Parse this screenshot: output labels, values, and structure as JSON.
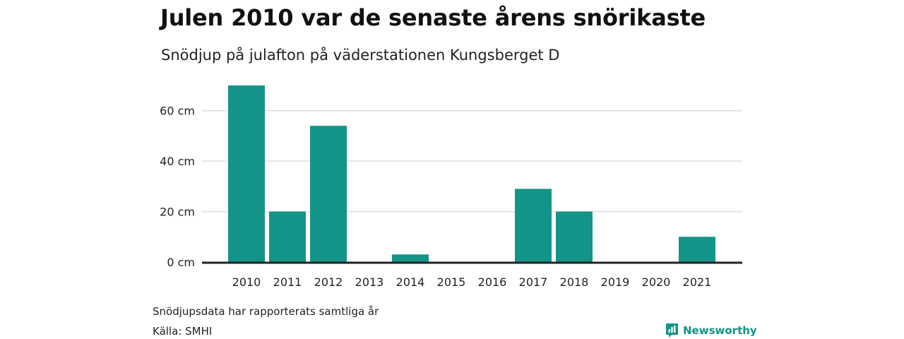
{
  "header": {
    "title": "Julen 2010 var de senaste årens snörikaste",
    "subtitle": "Snödjup på julafton på väderstationen Kungsberget D"
  },
  "footer": {
    "note": "Snödjupsdata har rapporterats samtliga år",
    "source": "Källa: SMHI",
    "brand": "Newsworthy"
  },
  "colors": {
    "bar": "#139488",
    "grid": "#dddddd",
    "baseline": "#222222",
    "brand": "#139488"
  },
  "chart_data": {
    "type": "bar",
    "categories": [
      "2010",
      "2011",
      "2012",
      "2013",
      "2014",
      "2015",
      "2016",
      "2017",
      "2018",
      "2019",
      "2020",
      "2021"
    ],
    "values": [
      70,
      20,
      54,
      0,
      3,
      0,
      0,
      29,
      20,
      0,
      0,
      10
    ],
    "ylim": [
      0,
      70
    ],
    "yticks": [
      0,
      20,
      40,
      60
    ],
    "ytick_labels": [
      "0 cm",
      "20 cm",
      "40 cm",
      "60 cm"
    ],
    "grid": true
  }
}
